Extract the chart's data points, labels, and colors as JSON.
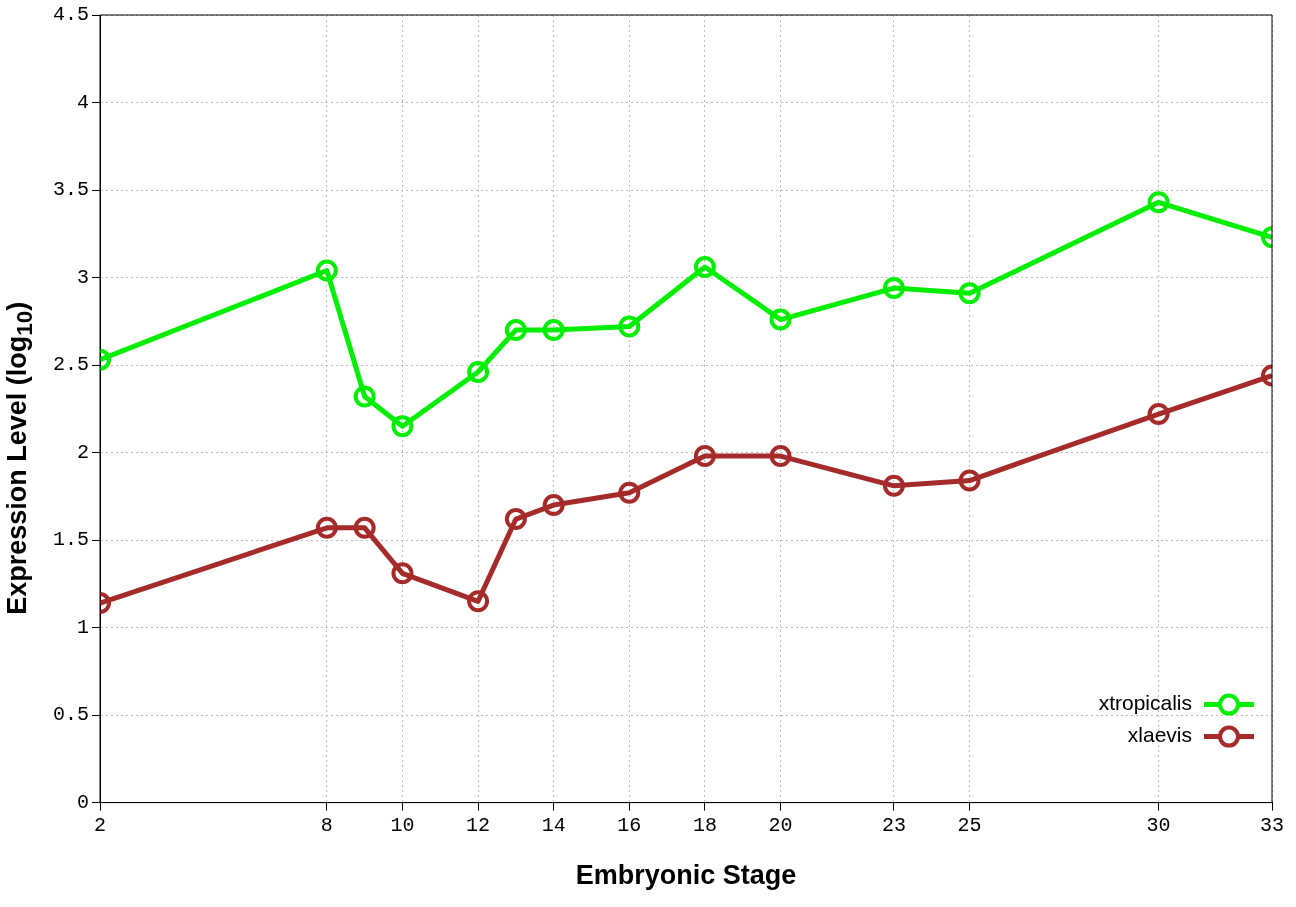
{
  "chart_data": {
    "type": "line",
    "xlabel": "Embryonic Stage",
    "ylabel": "Expression Level (log$_{10}$)",
    "x": [
      2,
      8,
      9,
      10,
      12,
      13,
      14,
      16,
      18,
      20,
      23,
      25,
      30,
      33
    ],
    "series": [
      {
        "name": "xtropicalis",
        "color": "#00ee00",
        "values": [
          2.53,
          3.04,
          2.32,
          2.15,
          2.46,
          2.7,
          2.7,
          2.72,
          3.06,
          2.76,
          2.94,
          2.91,
          3.43,
          3.23
        ]
      },
      {
        "name": "xlaevis",
        "color": "#a52a2a",
        "values": [
          1.14,
          1.57,
          1.57,
          1.31,
          1.15,
          1.62,
          1.7,
          1.77,
          1.98,
          1.98,
          1.81,
          1.84,
          2.22,
          2.44
        ]
      }
    ],
    "xlim": [
      2,
      33
    ],
    "xticks": [
      2,
      8,
      10,
      12,
      14,
      16,
      18,
      20,
      23,
      25,
      30,
      33
    ],
    "ylim": [
      0,
      4.5
    ],
    "yticks": [
      0,
      0.5,
      1,
      1.5,
      2,
      2.5,
      3,
      3.5,
      4,
      {
        "value": 4.5,
        "label": "4.5"
      }
    ],
    "grid": true,
    "legend": "bottom right",
    "marker": "circle",
    "line_style": "solid"
  }
}
